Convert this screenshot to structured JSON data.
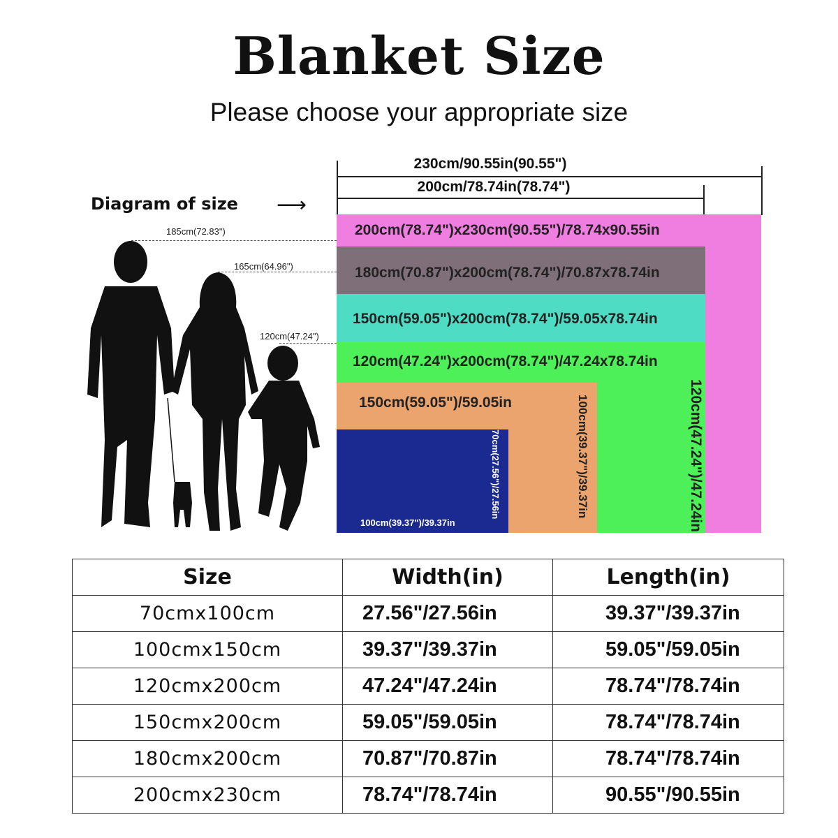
{
  "title": "Blanket Size",
  "subtitle": "Please choose your appropriate size",
  "diagram": {
    "label": "Diagram of size",
    "dim_230": "230cm/90.55in(90.55\")",
    "dim_200": "200cm/78.74in(78.74\")",
    "heights": [
      "185cm(72.83\")",
      "165cm(64.96\")",
      "120cm(47.24\")"
    ],
    "blankets": [
      {
        "label": "200cm(78.74\")x230cm(90.55\")/78.74x90.55in",
        "color": "#f07ee0"
      },
      {
        "label": "180cm(70.87\")x200cm(78.74\")/70.87x78.74in",
        "color": "#7f6f78"
      },
      {
        "label": "150cm(59.05\")x200cm(78.74\")/59.05x78.74in",
        "color": "#4fdcc4"
      },
      {
        "label": "120cm(47.24\")x200cm(78.74\")/47.24x78.74in",
        "color": "#4ef05a",
        "side": "120cm(47.24\")/47.24in"
      },
      {
        "label": "150cm(59.05\")/59.05in",
        "color": "#eba46e",
        "side": "100cm(39.37\")/39.37in"
      },
      {
        "label": "100cm(39.37\")/39.37in",
        "color": "#1a2a90",
        "side": "70cm(27.56\")/27.56in"
      }
    ]
  },
  "table": {
    "headers": [
      "Size",
      "Width(in)",
      "Length(in)"
    ],
    "rows": [
      [
        "70cmx100cm",
        "27.56\"/27.56in",
        "39.37\"/39.37in"
      ],
      [
        "100cmx150cm",
        "39.37\"/39.37in",
        "59.05\"/59.05in"
      ],
      [
        "120cmx200cm",
        "47.24\"/47.24in",
        "78.74\"/78.74in"
      ],
      [
        "150cmx200cm",
        "59.05\"/59.05in",
        "78.74\"/78.74in"
      ],
      [
        "180cmx200cm",
        "70.87\"/70.87in",
        "78.74\"/78.74in"
      ],
      [
        "200cmx230cm",
        "78.74\"/78.74in",
        "90.55\"/90.55in"
      ]
    ]
  }
}
